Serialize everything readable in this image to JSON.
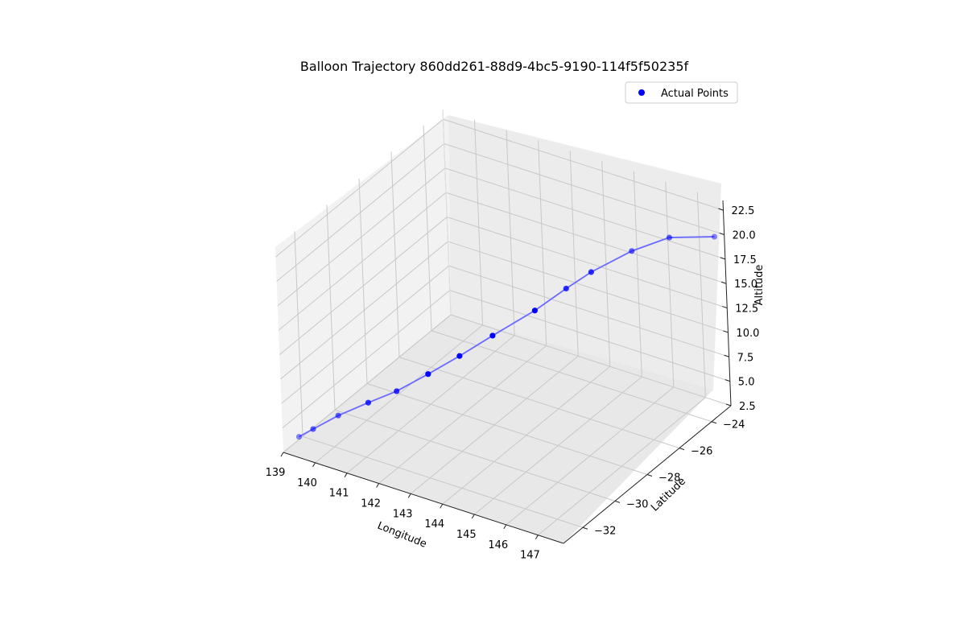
{
  "chart_data": {
    "type": "scatter",
    "projection": "3d",
    "title": "Balloon Trajectory 860dd261-88d9-4bc5-9190-114f5f50235f",
    "xlabel": "Longitude",
    "ylabel": "Latitude",
    "zlabel": "Altitude",
    "xlim": [
      139,
      147.8
    ],
    "ylim": [
      -33.2,
      -22.8
    ],
    "zlim": [
      2.5,
      23.5
    ],
    "xticks": [
      "139",
      "140",
      "141",
      "142",
      "143",
      "144",
      "145",
      "146",
      "147"
    ],
    "yticks": [
      "−32",
      "−30",
      "−28",
      "−26",
      "−24"
    ],
    "zticks": [
      "2.5",
      "5.0",
      "7.5",
      "10.0",
      "12.5",
      "15.0",
      "17.5",
      "20.0",
      "22.5"
    ],
    "grid": true,
    "legend_position": "top-right",
    "series": [
      {
        "name": "Actual Points",
        "color": "#0000ff",
        "line_color": "#6a6aff",
        "x": [
          139.2,
          139.5,
          140.0,
          140.6,
          141.2,
          141.8,
          142.4,
          143.0,
          143.9,
          144.5,
          145.0,
          146.0,
          147.0,
          147.8
        ],
        "y": [
          -32.6,
          -32.3,
          -31.7,
          -31.0,
          -30.4,
          -29.6,
          -28.8,
          -27.9,
          -27.0,
          -26.2,
          -25.6,
          -25.0,
          -24.6,
          -23.4
        ],
        "z": [
          3.5,
          4.2,
          5.3,
          6.3,
          7.3,
          8.6,
          10.0,
          11.5,
          13.8,
          15.6,
          17.0,
          19.4,
          21.3,
          20.6
        ]
      }
    ]
  }
}
